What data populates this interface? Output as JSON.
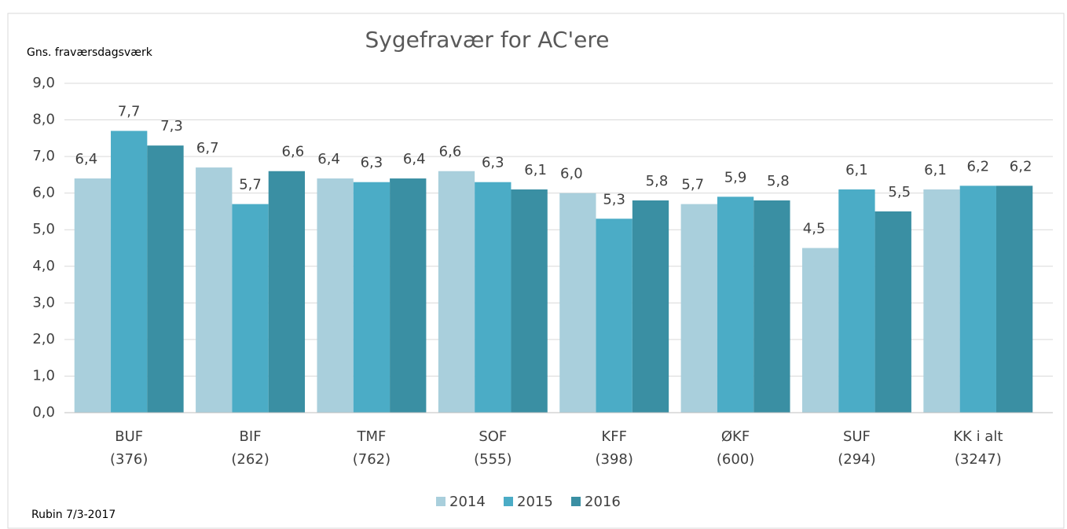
{
  "chart_data": {
    "type": "bar",
    "title": "Sygefravær for AC'ere",
    "y_label": "Gns. fraværsdagsværk",
    "footnote": "Rubin 7/3-2017",
    "categories": [
      [
        "BUF",
        "(376)"
      ],
      [
        "BIF",
        "(262)"
      ],
      [
        "TMF",
        "(762)"
      ],
      [
        "SOF",
        "(555)"
      ],
      [
        "KFF",
        "(398)"
      ],
      [
        "ØKF",
        "(600)"
      ],
      [
        "SUF",
        "(294)"
      ],
      [
        "KK i alt",
        "(3247)"
      ]
    ],
    "series": [
      {
        "name": "2014",
        "color": "#a9cfdc",
        "values": [
          6.4,
          6.7,
          6.4,
          6.6,
          6.0,
          5.7,
          4.5,
          6.1
        ],
        "value_labels": [
          "6,4",
          "6,7",
          "6,4",
          "6,6",
          "6,0",
          "5,7",
          "4,5",
          "6,1"
        ]
      },
      {
        "name": "2015",
        "color": "#4bacc6",
        "values": [
          7.7,
          5.7,
          6.3,
          6.3,
          5.3,
          5.9,
          6.1,
          6.2
        ],
        "value_labels": [
          "7,7",
          "5,7",
          "6,3",
          "6,3",
          "5,3",
          "5,9",
          "6,1",
          "6,2"
        ]
      },
      {
        "name": "2016",
        "color": "#3a8fa3",
        "values": [
          7.3,
          6.6,
          6.4,
          6.1,
          5.8,
          5.8,
          5.5,
          6.2
        ],
        "value_labels": [
          "7,3",
          "6,6",
          "6,4",
          "6,1",
          "5,8",
          "5,8",
          "5,5",
          "6,2"
        ]
      }
    ],
    "ylim": [
      0,
      9
    ],
    "yticks": [
      {
        "value": 0,
        "label": "0,0"
      },
      {
        "value": 1,
        "label": "1,0"
      },
      {
        "value": 2,
        "label": "2,0"
      },
      {
        "value": 3,
        "label": "3,0"
      },
      {
        "value": 4,
        "label": "4,0"
      },
      {
        "value": 5,
        "label": "5,0"
      },
      {
        "value": 6,
        "label": "6,0"
      },
      {
        "value": 7,
        "label": "7,0"
      },
      {
        "value": 8,
        "label": "8,0"
      },
      {
        "value": 9,
        "label": "9,0"
      }
    ],
    "grid": true,
    "legend": "bottom"
  }
}
